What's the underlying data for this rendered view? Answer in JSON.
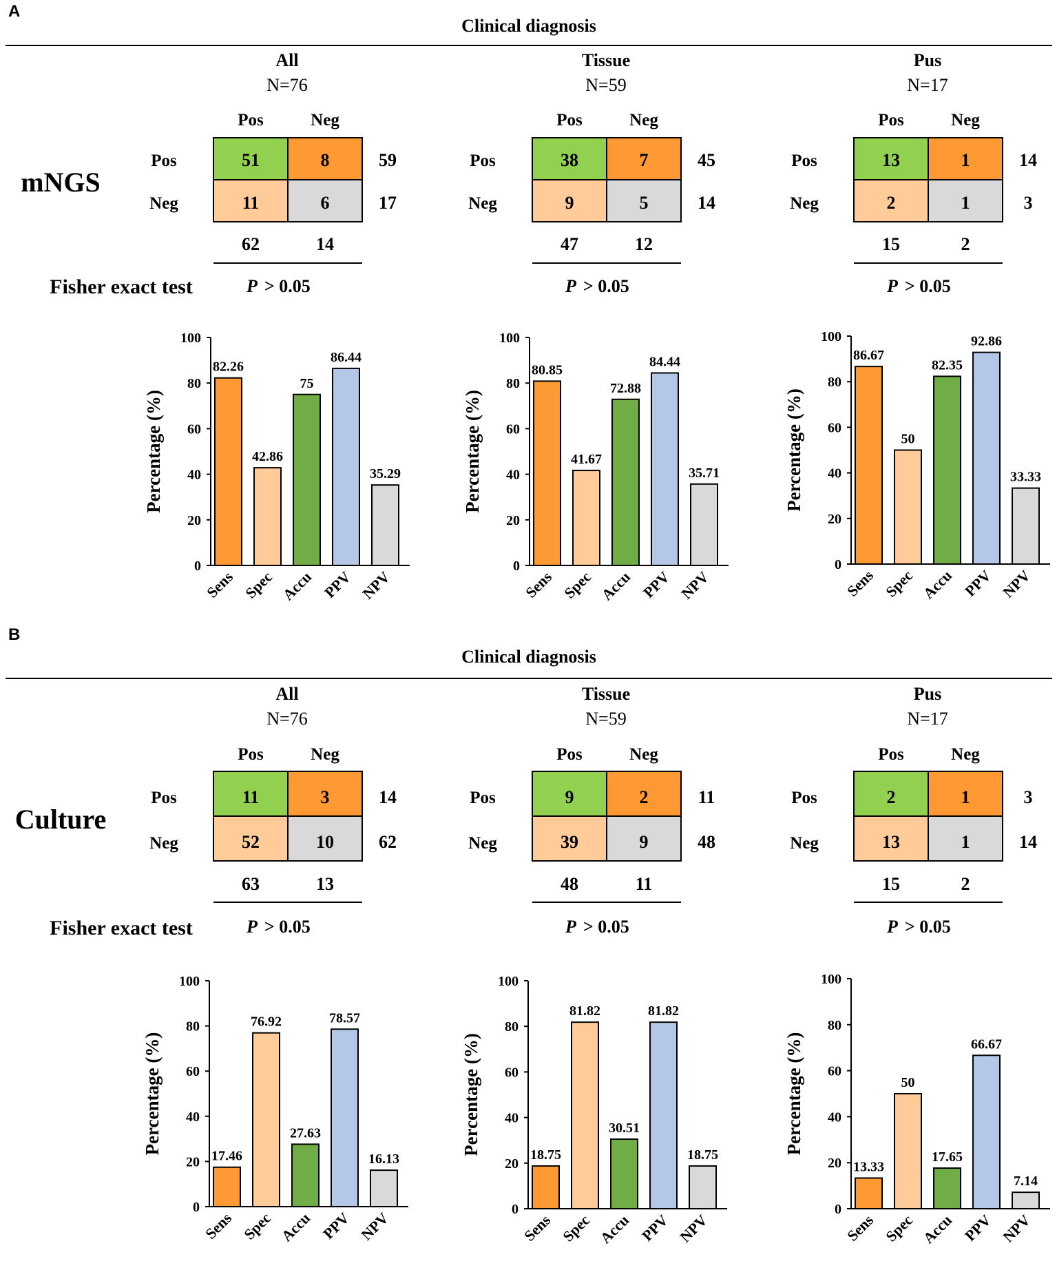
{
  "colors": {
    "green": "#92d050",
    "orange": "#ff9933",
    "peach": "#ffcc99",
    "grey": "#d9d9d9",
    "bar_sens": "#ff9933",
    "bar_spec": "#ffcc99",
    "bar_accu": "#70ad47",
    "bar_ppv": "#b4c7e7",
    "bar_npv": "#d9d9d9"
  },
  "panels": [
    {
      "letter": "A",
      "header": "Clinical diagnosis",
      "method": "mNGS",
      "fisher_label": "Fisher exact test",
      "groups": [
        {
          "title": "All",
          "n": "N=76",
          "col_labels": [
            "Pos",
            "Neg"
          ],
          "row_labels": [
            "Pos",
            "Neg"
          ],
          "cells": [
            [
              "51",
              "8"
            ],
            [
              "11",
              "6"
            ]
          ],
          "row_totals": [
            "59",
            "17"
          ],
          "col_totals": [
            "62",
            "14"
          ],
          "p_symbol": "P",
          "p_rest": "> 0.05"
        },
        {
          "title": "Tissue",
          "n": "N=59",
          "col_labels": [
            "Pos",
            "Neg"
          ],
          "row_labels": [
            "Pos",
            "Neg"
          ],
          "cells": [
            [
              "38",
              "7"
            ],
            [
              "9",
              "5"
            ]
          ],
          "row_totals": [
            "45",
            "14"
          ],
          "col_totals": [
            "47",
            "12"
          ],
          "p_symbol": "P",
          "p_rest": "> 0.05"
        },
        {
          "title": "Pus",
          "n": "N=17",
          "col_labels": [
            "Pos",
            "Neg"
          ],
          "row_labels": [
            "Pos",
            "Neg"
          ],
          "cells": [
            [
              "13",
              "1"
            ],
            [
              "2",
              "1"
            ]
          ],
          "row_totals": [
            "14",
            "3"
          ],
          "col_totals": [
            "15",
            "2"
          ],
          "p_symbol": "P",
          "p_rest": "> 0.05"
        }
      ]
    },
    {
      "letter": "B",
      "header": "Clinical diagnosis",
      "method": "Culture",
      "fisher_label": "Fisher exact test",
      "groups": [
        {
          "title": "All",
          "n": "N=76",
          "col_labels": [
            "Pos",
            "Neg"
          ],
          "row_labels": [
            "Pos",
            "Neg"
          ],
          "cells": [
            [
              "11",
              "3"
            ],
            [
              "52",
              "10"
            ]
          ],
          "row_totals": [
            "14",
            "62"
          ],
          "col_totals": [
            "63",
            "13"
          ],
          "p_symbol": "P",
          "p_rest": "> 0.05"
        },
        {
          "title": "Tissue",
          "n": "N=59",
          "col_labels": [
            "Pos",
            "Neg"
          ],
          "row_labels": [
            "Pos",
            "Neg"
          ],
          "cells": [
            [
              "9",
              "2"
            ],
            [
              "39",
              "9"
            ]
          ],
          "row_totals": [
            "11",
            "48"
          ],
          "col_totals": [
            "48",
            "11"
          ],
          "p_symbol": "P",
          "p_rest": "> 0.05"
        },
        {
          "title": "Pus",
          "n": "N=17",
          "col_labels": [
            "Pos",
            "Neg"
          ],
          "row_labels": [
            "Pos",
            "Neg"
          ],
          "cells": [
            [
              "2",
              "1"
            ],
            [
              "13",
              "1"
            ]
          ],
          "row_totals": [
            "3",
            "14"
          ],
          "col_totals": [
            "15",
            "2"
          ],
          "p_symbol": "P",
          "p_rest": "> 0.05"
        }
      ]
    }
  ],
  "chart_data": [
    {
      "type": "bar",
      "panel": "A",
      "group": "All",
      "categories": [
        "Sens",
        "Spec",
        "Accu",
        "PPV",
        "NPV"
      ],
      "values": [
        82.26,
        42.86,
        75,
        86.44,
        35.29
      ],
      "labels": [
        "82.26",
        "42.86",
        "75",
        "86.44",
        "35.29"
      ],
      "ylabel": "Percentage (%)",
      "ylim": [
        0,
        100
      ],
      "yticks": [
        "0",
        "20",
        "40",
        "60",
        "80",
        "100"
      ]
    },
    {
      "type": "bar",
      "panel": "A",
      "group": "Tissue",
      "categories": [
        "Sens",
        "Spec",
        "Accu",
        "PPV",
        "NPV"
      ],
      "values": [
        80.85,
        41.67,
        72.88,
        84.44,
        35.71
      ],
      "labels": [
        "80.85",
        "41.67",
        "72.88",
        "84.44",
        "35.71"
      ],
      "ylabel": "Percentage (%)",
      "ylim": [
        0,
        100
      ],
      "yticks": [
        "0",
        "20",
        "40",
        "60",
        "80",
        "100"
      ]
    },
    {
      "type": "bar",
      "panel": "A",
      "group": "Pus",
      "categories": [
        "Sens",
        "Spec",
        "Accu",
        "PPV",
        "NPV"
      ],
      "values": [
        86.67,
        50,
        82.35,
        92.86,
        33.33
      ],
      "labels": [
        "86.67",
        "50",
        "82.35",
        "92.86",
        "33.33"
      ],
      "ylabel": "Percentage (%)",
      "ylim": [
        0,
        100
      ],
      "yticks": [
        "0",
        "20",
        "40",
        "60",
        "80",
        "100"
      ]
    },
    {
      "type": "bar",
      "panel": "B",
      "group": "All",
      "categories": [
        "Sens",
        "Spec",
        "Accu",
        "PPV",
        "NPV"
      ],
      "values": [
        17.46,
        76.92,
        27.63,
        78.57,
        16.13
      ],
      "labels": [
        "17.46",
        "76.92",
        "27.63",
        "78.57",
        "16.13"
      ],
      "ylabel": "Percentage (%)",
      "ylim": [
        0,
        100
      ],
      "yticks": [
        "0",
        "20",
        "40",
        "60",
        "80",
        "100"
      ]
    },
    {
      "type": "bar",
      "panel": "B",
      "group": "Tissue",
      "categories": [
        "Sens",
        "Spec",
        "Accu",
        "PPV",
        "NPV"
      ],
      "values": [
        18.75,
        81.82,
        30.51,
        81.82,
        18.75
      ],
      "labels": [
        "18.75",
        "81.82",
        "30.51",
        "81.82",
        "18.75"
      ],
      "ylabel": "Percentage (%)",
      "ylim": [
        0,
        100
      ],
      "yticks": [
        "0",
        "20",
        "40",
        "60",
        "80",
        "100"
      ]
    },
    {
      "type": "bar",
      "panel": "B",
      "group": "Pus",
      "categories": [
        "Sens",
        "Spec",
        "Accu",
        "PPV",
        "NPV"
      ],
      "values": [
        13.33,
        50,
        17.65,
        66.67,
        7.14
      ],
      "labels": [
        "13.33",
        "50",
        "17.65",
        "66.67",
        "7.14"
      ],
      "ylabel": "Percentage (%)",
      "ylim": [
        0,
        100
      ],
      "yticks": [
        "0",
        "20",
        "40",
        "60",
        "80",
        "100"
      ]
    }
  ]
}
